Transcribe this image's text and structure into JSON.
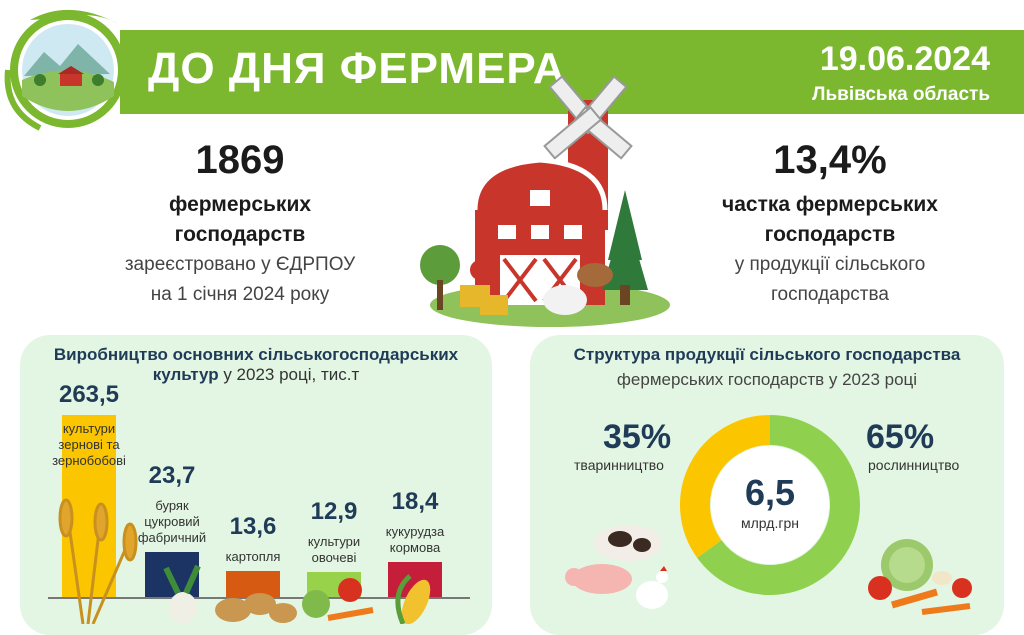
{
  "header": {
    "title": "ДО ДНЯ ФЕРМЕРА",
    "date": "19.06.2024",
    "region": "Львівська область"
  },
  "left_stat": {
    "value": "1869",
    "bold_lines": [
      "фермерських",
      "господарств"
    ],
    "lines": [
      "зареєстровано у ЄДРПОУ",
      "на 1 січня 2024 року"
    ]
  },
  "right_stat": {
    "value": "13,4%",
    "bold_lines": [
      "частка фермерських",
      "господарств"
    ],
    "lines": [
      "у продукції сільського",
      "господарства"
    ]
  },
  "colors": {
    "banner": "#7cb82f",
    "panel": "#e3f6e3",
    "grain": "#fbc600",
    "beet": "#1b3463",
    "potato": "#d65a12",
    "vegetables": "#98d24a",
    "corn": "#c41e3a",
    "livestock": "#fbc600",
    "crops": "#8fd14f"
  },
  "chart_data": [
    {
      "type": "bar",
      "title_bold": "Виробництво основних сільськогосподарських культур",
      "title_rest": " у 2023 році, тис.т",
      "categories": [
        [
          "культури",
          "зернові та",
          "зернобобові"
        ],
        [
          "буряк",
          "цукровий",
          "фабричний"
        ],
        [
          "картопля"
        ],
        [
          "культури",
          "овочеві"
        ],
        [
          "кукурудза",
          "кормова"
        ]
      ],
      "values": [
        263.5,
        23.7,
        13.6,
        12.9,
        18.4
      ],
      "value_labels": [
        "263,5",
        "23,7",
        "13,6",
        "12,9",
        "18,4"
      ],
      "bar_colors": [
        "#fbc600",
        "#1b3463",
        "#d65a12",
        "#98d24a",
        "#c41e3a"
      ]
    },
    {
      "type": "pie",
      "title": "Структура продукції сільського господарства",
      "subtitle": "фермерських господарств у 2023 році",
      "center_value": "6,5",
      "center_unit": "млрд.грн",
      "slices": [
        {
          "label": "тваринництво",
          "value": 35,
          "value_label": "35%",
          "color": "#fbc600"
        },
        {
          "label": "рослинництво",
          "value": 65,
          "value_label": "65%",
          "color": "#8fd14f"
        }
      ]
    }
  ]
}
